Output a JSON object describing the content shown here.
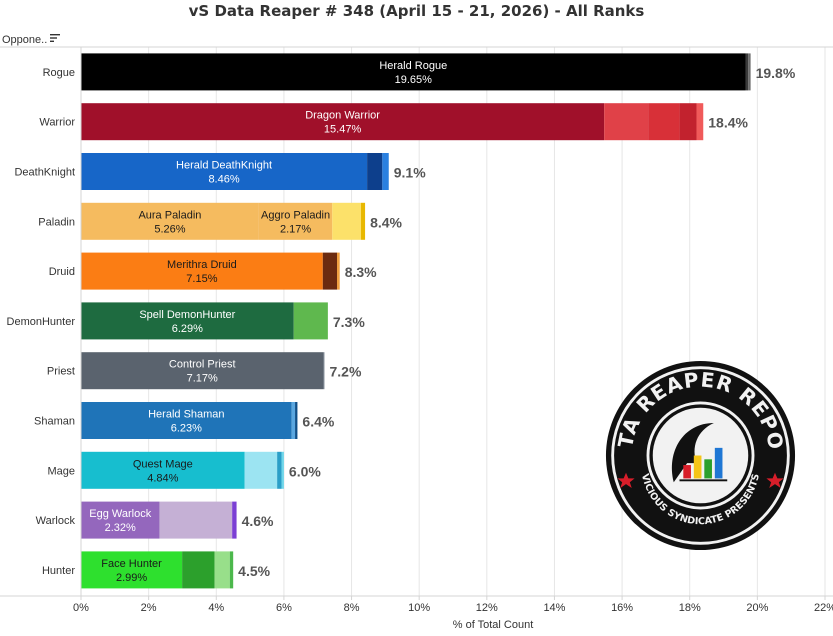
{
  "title": "vS Data Reaper # 348 (April 15 - 21, 2026) - All Ranks",
  "filter": {
    "label": "Oppone..",
    "icon": "sort-icon"
  },
  "logo": {
    "top_text": "DATA REAPER REPORT",
    "bottom_text": "VICIOUS SYNDICATE PRESENTS"
  },
  "colors": {
    "grid": "#e6e6e6",
    "axis": "#d4d4d4",
    "text": "#333333",
    "total_label": "#555555"
  },
  "chart_data": {
    "type": "bar",
    "orientation": "horizontal",
    "stacked": true,
    "xlabel": "% of Total Count",
    "xlim": [
      0,
      22
    ],
    "xticks": [
      "0%",
      "2%",
      "4%",
      "6%",
      "8%",
      "10%",
      "12%",
      "14%",
      "16%",
      "18%",
      "20%",
      "22%"
    ],
    "grid": true,
    "categories": [
      "Rogue",
      "Warrior",
      "DeathKnight",
      "Paladin",
      "Druid",
      "DemonHunter",
      "Priest",
      "Shaman",
      "Mage",
      "Warlock",
      "Hunter"
    ],
    "totals": [
      "19.8%",
      "18.4%",
      "9.1%",
      "8.4%",
      "8.3%",
      "7.3%",
      "7.2%",
      "6.4%",
      "6.0%",
      "4.6%",
      "4.5%"
    ],
    "bars": [
      {
        "class": "Rogue",
        "segments": [
          {
            "name": "Herald Rogue",
            "label": "19.65%",
            "value": 19.65,
            "color": "#000000",
            "text_color": "#ffffff"
          },
          {
            "value": 0.08,
            "color": "#3a3a3a"
          },
          {
            "value": 0.07,
            "color": "#6b6b6b"
          }
        ]
      },
      {
        "class": "Warrior",
        "segments": [
          {
            "name": "Dragon Warrior",
            "label": "15.47%",
            "value": 15.47,
            "color": "#a0102a",
            "text_color": "#ffffff"
          },
          {
            "value": 1.3,
            "color": "#e04148"
          },
          {
            "value": 0.93,
            "color": "#d83038"
          },
          {
            "value": 0.5,
            "color": "#c2222e"
          },
          {
            "value": 0.2,
            "color": "#f05a5a"
          }
        ]
      },
      {
        "class": "DeathKnight",
        "segments": [
          {
            "name": "Herald DeathKnight",
            "label": "8.46%",
            "value": 8.46,
            "color": "#1766c8",
            "text_color": "#ffffff"
          },
          {
            "value": 0.45,
            "color": "#0d3f8c"
          },
          {
            "value": 0.19,
            "color": "#2a80e0"
          }
        ]
      },
      {
        "class": "Paladin",
        "segments": [
          {
            "name": "Aura Paladin",
            "label": "5.26%",
            "value": 5.26,
            "color": "#f5bb5f",
            "text_color": "#1a1a1a"
          },
          {
            "name": "Aggro Paladin",
            "label": "2.17%",
            "value": 2.17,
            "color": "#f5bb5f",
            "text_color": "#1a1a1a"
          },
          {
            "value": 0.85,
            "color": "#fce16a"
          },
          {
            "value": 0.12,
            "color": "#e8b800"
          }
        ]
      },
      {
        "class": "Druid",
        "segments": [
          {
            "name": "Merithra Druid",
            "label": "7.15%",
            "value": 7.15,
            "color": "#fb7d14",
            "text_color": "#1a1a1a"
          },
          {
            "value": 0.42,
            "color": "#6b2b10"
          },
          {
            "value": 0.08,
            "color": "#f0a040"
          }
        ]
      },
      {
        "class": "DemonHunter",
        "segments": [
          {
            "name": "Spell DemonHunter",
            "label": "6.29%",
            "value": 6.29,
            "color": "#1e6b40",
            "text_color": "#ffffff"
          },
          {
            "value": 1.01,
            "color": "#5fb84e"
          }
        ]
      },
      {
        "class": "Priest",
        "segments": [
          {
            "name": "Control Priest",
            "label": "7.17%",
            "value": 7.17,
            "color": "#5a636e",
            "text_color": "#ffffff"
          },
          {
            "value": 0.03,
            "color": "#8a939e"
          }
        ]
      },
      {
        "class": "Shaman",
        "segments": [
          {
            "name": "Herald Shaman",
            "label": "6.23%",
            "value": 6.23,
            "color": "#1f74b8",
            "text_color": "#ffffff"
          },
          {
            "value": 0.1,
            "color": "#5aa7e0"
          },
          {
            "value": 0.07,
            "color": "#0f4f88"
          }
        ]
      },
      {
        "class": "Mage",
        "segments": [
          {
            "name": "Quest Mage",
            "label": "4.84%",
            "value": 4.84,
            "color": "#17becf",
            "text_color": "#1a1a1a"
          },
          {
            "value": 0.96,
            "color": "#9ce4f2"
          },
          {
            "value": 0.13,
            "color": "#2a9fc8"
          },
          {
            "value": 0.07,
            "color": "#6fd6ea"
          }
        ]
      },
      {
        "class": "Warlock",
        "segments": [
          {
            "name": "Egg Warlock",
            "label": "2.32%",
            "value": 2.32,
            "color": "#9467bd",
            "text_color": "#ffffff"
          },
          {
            "value": 2.15,
            "color": "#c5b0d5"
          },
          {
            "value": 0.13,
            "color": "#7b3fd4"
          }
        ]
      },
      {
        "class": "Hunter",
        "segments": [
          {
            "name": "Face Hunter",
            "label": "2.99%",
            "value": 2.99,
            "color": "#2ee02e",
            "text_color": "#1a1a1a"
          },
          {
            "value": 0.96,
            "color": "#2ca02c"
          },
          {
            "value": 0.45,
            "color": "#98df8a"
          },
          {
            "value": 0.1,
            "color": "#4cb84c"
          }
        ]
      }
    ]
  }
}
